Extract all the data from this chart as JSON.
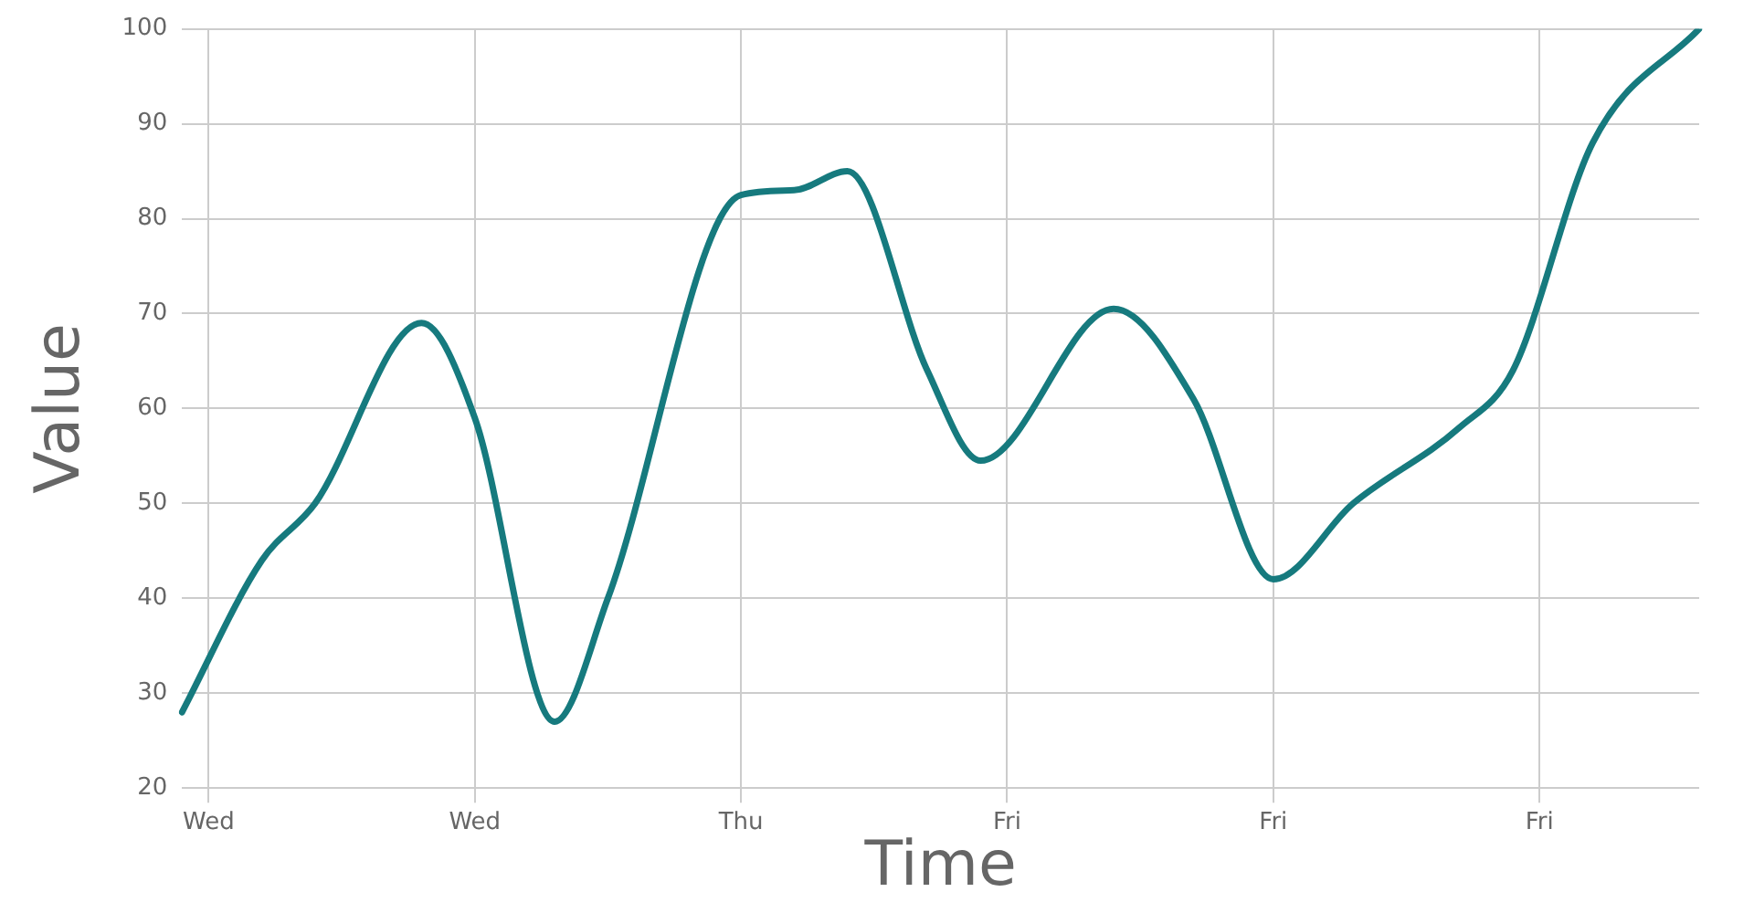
{
  "chart_data": {
    "type": "line",
    "xlabel": "Time",
    "ylabel": "Value",
    "categories": [
      null,
      "Wed",
      null,
      null,
      null,
      null,
      null,
      null,
      null,
      null,
      null,
      "Wed",
      null,
      null,
      null,
      null,
      null,
      null,
      null,
      null,
      null,
      "Thu",
      null,
      null,
      null,
      null,
      null,
      null,
      null,
      null,
      null,
      "Fri",
      null,
      null,
      null,
      null,
      null,
      null,
      null,
      null,
      null,
      "Fri",
      null,
      null,
      null,
      null,
      null,
      null,
      null,
      null,
      null,
      "Fri",
      null,
      null,
      null,
      null,
      null,
      null
    ],
    "series": [
      {
        "color": "#167a7e",
        "values": [
          28,
          null,
          null,
          44,
          null,
          50,
          null,
          null,
          null,
          69,
          null,
          59,
          null,
          null,
          27,
          null,
          40,
          null,
          null,
          null,
          null,
          82.5,
          null,
          83,
          null,
          85,
          null,
          null,
          64,
          null,
          54.5,
          null,
          null,
          null,
          null,
          70.5,
          null,
          null,
          61,
          null,
          null,
          42,
          null,
          null,
          50,
          null,
          null,
          null,
          58,
          null,
          64,
          null,
          null,
          88,
          null,
          null,
          null,
          100
        ]
      }
    ],
    "ylim": [
      20,
      100
    ],
    "yticks": [
      20,
      30,
      40,
      50,
      60,
      70,
      80,
      90,
      100
    ],
    "grid": true,
    "marker": "none",
    "line_style": "solid"
  }
}
